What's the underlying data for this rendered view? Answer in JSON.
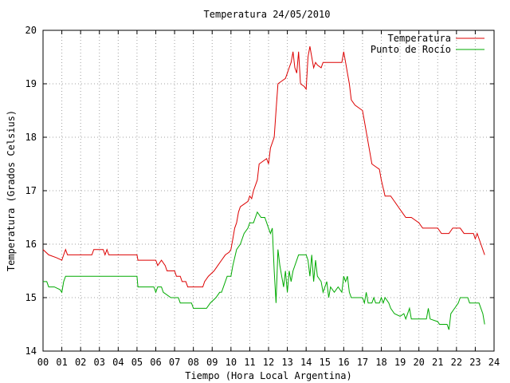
{
  "chart_data": {
    "type": "line",
    "title": "Temperatura 24/05/2010",
    "xlabel": "Tiempo (Hora Local Argentina)",
    "ylabel": "Temperatura (Grados Celsius)",
    "xlim": [
      0,
      24
    ],
    "ylim": [
      14,
      20
    ],
    "x_ticks": [
      "00",
      "01",
      "02",
      "03",
      "04",
      "05",
      "06",
      "07",
      "08",
      "09",
      "10",
      "11",
      "12",
      "13",
      "14",
      "15",
      "16",
      "17",
      "18",
      "19",
      "20",
      "21",
      "22",
      "23",
      "24"
    ],
    "y_ticks": [
      "14",
      "15",
      "16",
      "17",
      "18",
      "19",
      "20"
    ],
    "grid": true,
    "legend_position": "top-right",
    "series": [
      {
        "name": "Temperatura",
        "color": "#dd0000",
        "points": [
          [
            0,
            15.9
          ],
          [
            0.3,
            15.8
          ],
          [
            0.7,
            15.75
          ],
          [
            1.0,
            15.7
          ],
          [
            1.1,
            15.8
          ],
          [
            1.2,
            15.9
          ],
          [
            1.3,
            15.8
          ],
          [
            2.0,
            15.8
          ],
          [
            2.6,
            15.8
          ],
          [
            2.7,
            15.9
          ],
          [
            3.2,
            15.9
          ],
          [
            3.3,
            15.8
          ],
          [
            3.4,
            15.9
          ],
          [
            3.5,
            15.8
          ],
          [
            4.0,
            15.8
          ],
          [
            5.0,
            15.8
          ],
          [
            5.05,
            15.7
          ],
          [
            6.0,
            15.7
          ],
          [
            6.1,
            15.6
          ],
          [
            6.3,
            15.7
          ],
          [
            6.5,
            15.6
          ],
          [
            6.6,
            15.5
          ],
          [
            7.0,
            15.5
          ],
          [
            7.1,
            15.4
          ],
          [
            7.3,
            15.4
          ],
          [
            7.4,
            15.3
          ],
          [
            7.6,
            15.3
          ],
          [
            7.7,
            15.2
          ],
          [
            8.0,
            15.2
          ],
          [
            8.5,
            15.2
          ],
          [
            8.6,
            15.3
          ],
          [
            8.8,
            15.4
          ],
          [
            9.1,
            15.5
          ],
          [
            9.3,
            15.6
          ],
          [
            9.5,
            15.7
          ],
          [
            9.7,
            15.8
          ],
          [
            9.9,
            15.85
          ],
          [
            10.0,
            15.9
          ],
          [
            10.1,
            16.1
          ],
          [
            10.2,
            16.3
          ],
          [
            10.3,
            16.4
          ],
          [
            10.4,
            16.6
          ],
          [
            10.5,
            16.7
          ],
          [
            10.7,
            16.75
          ],
          [
            10.9,
            16.8
          ],
          [
            11.0,
            16.9
          ],
          [
            11.1,
            16.85
          ],
          [
            11.2,
            17.0
          ],
          [
            11.4,
            17.2
          ],
          [
            11.5,
            17.5
          ],
          [
            11.7,
            17.55
          ],
          [
            11.9,
            17.6
          ],
          [
            12.0,
            17.5
          ],
          [
            12.1,
            17.8
          ],
          [
            12.3,
            18.0
          ],
          [
            12.4,
            18.5
          ],
          [
            12.5,
            19.0
          ],
          [
            12.7,
            19.05
          ],
          [
            12.9,
            19.1
          ],
          [
            13.0,
            19.2
          ],
          [
            13.1,
            19.3
          ],
          [
            13.2,
            19.4
          ],
          [
            13.3,
            19.6
          ],
          [
            13.4,
            19.3
          ],
          [
            13.5,
            19.2
          ],
          [
            13.6,
            19.6
          ],
          [
            13.7,
            19.0
          ],
          [
            13.9,
            18.95
          ],
          [
            14.0,
            18.9
          ],
          [
            14.1,
            19.5
          ],
          [
            14.2,
            19.7
          ],
          [
            14.3,
            19.5
          ],
          [
            14.4,
            19.3
          ],
          [
            14.5,
            19.4
          ],
          [
            14.6,
            19.35
          ],
          [
            14.8,
            19.3
          ],
          [
            14.9,
            19.4
          ],
          [
            15.5,
            19.4
          ],
          [
            15.9,
            19.4
          ],
          [
            16.0,
            19.6
          ],
          [
            16.1,
            19.4
          ],
          [
            16.2,
            19.2
          ],
          [
            16.3,
            19.0
          ],
          [
            16.4,
            18.7
          ],
          [
            16.6,
            18.6
          ],
          [
            16.8,
            18.55
          ],
          [
            17.0,
            18.5
          ],
          [
            17.1,
            18.3
          ],
          [
            17.3,
            17.9
          ],
          [
            17.5,
            17.5
          ],
          [
            17.7,
            17.45
          ],
          [
            17.9,
            17.4
          ],
          [
            18.0,
            17.2
          ],
          [
            18.2,
            16.9
          ],
          [
            18.5,
            16.9
          ],
          [
            18.7,
            16.8
          ],
          [
            18.9,
            16.7
          ],
          [
            19.1,
            16.6
          ],
          [
            19.3,
            16.5
          ],
          [
            19.6,
            16.5
          ],
          [
            20.0,
            16.4
          ],
          [
            20.2,
            16.3
          ],
          [
            20.5,
            16.3
          ],
          [
            21.0,
            16.3
          ],
          [
            21.2,
            16.2
          ],
          [
            21.6,
            16.2
          ],
          [
            21.8,
            16.3
          ],
          [
            22.2,
            16.3
          ],
          [
            22.4,
            16.2
          ],
          [
            22.9,
            16.2
          ],
          [
            23.0,
            16.1
          ],
          [
            23.1,
            16.2
          ],
          [
            23.3,
            16.0
          ],
          [
            23.5,
            15.8
          ]
        ]
      },
      {
        "name": "Punto de Rocío",
        "color": "#00aa00",
        "points": [
          [
            0,
            15.3
          ],
          [
            0.2,
            15.3
          ],
          [
            0.3,
            15.2
          ],
          [
            0.6,
            15.2
          ],
          [
            0.9,
            15.15
          ],
          [
            1.0,
            15.1
          ],
          [
            1.1,
            15.3
          ],
          [
            1.2,
            15.4
          ],
          [
            1.8,
            15.4
          ],
          [
            2.0,
            15.4
          ],
          [
            3.0,
            15.4
          ],
          [
            4.0,
            15.4
          ],
          [
            5.0,
            15.4
          ],
          [
            5.05,
            15.2
          ],
          [
            5.9,
            15.2
          ],
          [
            6.0,
            15.1
          ],
          [
            6.1,
            15.2
          ],
          [
            6.3,
            15.2
          ],
          [
            6.4,
            15.1
          ],
          [
            6.8,
            15.0
          ],
          [
            7.2,
            15.0
          ],
          [
            7.3,
            14.9
          ],
          [
            7.9,
            14.9
          ],
          [
            8.0,
            14.8
          ],
          [
            8.5,
            14.8
          ],
          [
            8.7,
            14.8
          ],
          [
            8.9,
            14.9
          ],
          [
            9.2,
            15.0
          ],
          [
            9.4,
            15.1
          ],
          [
            9.5,
            15.1
          ],
          [
            9.6,
            15.2
          ],
          [
            9.8,
            15.4
          ],
          [
            10.0,
            15.4
          ],
          [
            10.1,
            15.6
          ],
          [
            10.3,
            15.9
          ],
          [
            10.5,
            16.0
          ],
          [
            10.7,
            16.2
          ],
          [
            10.9,
            16.3
          ],
          [
            11.0,
            16.4
          ],
          [
            11.2,
            16.4
          ],
          [
            11.3,
            16.5
          ],
          [
            11.4,
            16.6
          ],
          [
            11.6,
            16.5
          ],
          [
            11.8,
            16.5
          ],
          [
            12.0,
            16.3
          ],
          [
            12.1,
            16.2
          ],
          [
            12.2,
            16.3
          ],
          [
            12.3,
            15.5
          ],
          [
            12.4,
            14.9
          ],
          [
            12.5,
            15.9
          ],
          [
            12.6,
            15.6
          ],
          [
            12.7,
            15.4
          ],
          [
            12.8,
            15.2
          ],
          [
            12.9,
            15.5
          ],
          [
            13.0,
            15.1
          ],
          [
            13.1,
            15.5
          ],
          [
            13.2,
            15.3
          ],
          [
            13.3,
            15.5
          ],
          [
            13.5,
            15.7
          ],
          [
            13.6,
            15.8
          ],
          [
            14.0,
            15.8
          ],
          [
            14.1,
            15.7
          ],
          [
            14.2,
            15.4
          ],
          [
            14.3,
            15.8
          ],
          [
            14.4,
            15.3
          ],
          [
            14.5,
            15.7
          ],
          [
            14.6,
            15.4
          ],
          [
            14.8,
            15.3
          ],
          [
            14.9,
            15.1
          ],
          [
            15.0,
            15.2
          ],
          [
            15.1,
            15.3
          ],
          [
            15.2,
            15.0
          ],
          [
            15.3,
            15.2
          ],
          [
            15.5,
            15.1
          ],
          [
            15.7,
            15.2
          ],
          [
            15.9,
            15.1
          ],
          [
            16.0,
            15.4
          ],
          [
            16.1,
            15.3
          ],
          [
            16.2,
            15.4
          ],
          [
            16.3,
            15.1
          ],
          [
            16.4,
            15.0
          ],
          [
            17.0,
            15.0
          ],
          [
            17.1,
            14.9
          ],
          [
            17.2,
            15.1
          ],
          [
            17.3,
            14.9
          ],
          [
            17.5,
            14.9
          ],
          [
            17.6,
            15.0
          ],
          [
            17.7,
            14.9
          ],
          [
            17.9,
            14.9
          ],
          [
            18.0,
            15.0
          ],
          [
            18.1,
            14.9
          ],
          [
            18.2,
            15.0
          ],
          [
            18.4,
            14.9
          ],
          [
            18.5,
            14.8
          ],
          [
            18.7,
            14.7
          ],
          [
            19.0,
            14.65
          ],
          [
            19.2,
            14.7
          ],
          [
            19.3,
            14.6
          ],
          [
            19.5,
            14.8
          ],
          [
            19.6,
            14.6
          ],
          [
            20.0,
            14.6
          ],
          [
            20.4,
            14.6
          ],
          [
            20.5,
            14.8
          ],
          [
            20.6,
            14.6
          ],
          [
            21.0,
            14.55
          ],
          [
            21.1,
            14.5
          ],
          [
            21.5,
            14.5
          ],
          [
            21.6,
            14.4
          ],
          [
            21.7,
            14.7
          ],
          [
            21.9,
            14.8
          ],
          [
            22.1,
            14.9
          ],
          [
            22.2,
            15.0
          ],
          [
            22.6,
            15.0
          ],
          [
            22.7,
            14.9
          ],
          [
            23.2,
            14.9
          ],
          [
            23.3,
            14.8
          ],
          [
            23.4,
            14.7
          ],
          [
            23.5,
            14.5
          ]
        ]
      }
    ]
  }
}
